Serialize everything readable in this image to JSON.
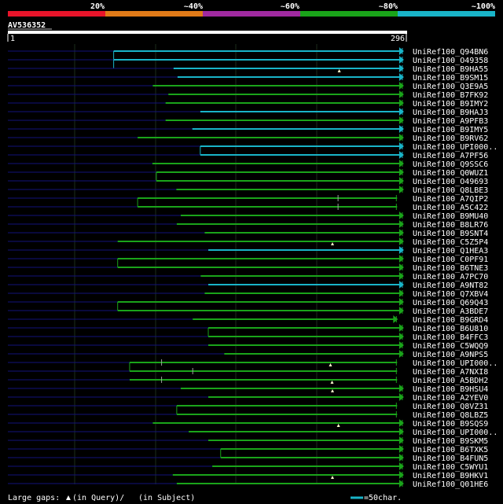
{
  "identity_scale": {
    "labels": [
      "20%",
      "~40%",
      "~60%",
      "~80%",
      "~100%"
    ],
    "colors": [
      "#e8142a",
      "#e07a18",
      "#a02aa0",
      "#1aa41a",
      "#19b4c8"
    ]
  },
  "query": {
    "name": "AV536352",
    "start": "1",
    "end": "296"
  },
  "hits": [
    {
      "name": "UniRef100_Q94BN6",
      "color": "#19b4c8",
      "start": 0.265,
      "end": 0.99,
      "seg": 0.265,
      "triangle": true
    },
    {
      "name": "UniRef100_O49358",
      "color": "#19b4c8",
      "start": 0.265,
      "end": 0.99,
      "seg": 0.265,
      "triangle": true
    },
    {
      "name": "UniRef100_B9HA55",
      "color": "#19b4c8",
      "start": 0.415,
      "end": 0.99,
      "marker": 0.83,
      "triangle": true
    },
    {
      "name": "UniRef100_B9SM15",
      "color": "#19b4c8",
      "start": 0.425,
      "end": 0.99,
      "triangle": true
    },
    {
      "name": "UniRef100_Q3E9A5",
      "color": "#1aa41a",
      "start": 0.363,
      "end": 0.99,
      "triangle": true
    },
    {
      "name": "UniRef100_B7FK92",
      "color": "#1aa41a",
      "start": 0.402,
      "end": 0.99,
      "triangle": true
    },
    {
      "name": "UniRef100_B9IMY2",
      "color": "#1aa41a",
      "start": 0.395,
      "end": 0.99,
      "triangle": true
    },
    {
      "name": "UniRef100_B9HAJ3",
      "color": "#19b4c8",
      "start": 0.482,
      "end": 0.99,
      "triangle": true
    },
    {
      "name": "UniRef100_A9PFB3",
      "color": "#1aa41a",
      "start": 0.395,
      "end": 0.99,
      "triangle": true
    },
    {
      "name": "UniRef100_B9IMY5",
      "color": "#19b4c8",
      "start": 0.462,
      "end": 0.99,
      "triangle": true
    },
    {
      "name": "UniRef100_B9RV62",
      "color": "#1aa41a",
      "start": 0.325,
      "end": 0.99,
      "triangle": true
    },
    {
      "name": "UniRef100_UPI000..",
      "color": "#19b4c8",
      "start": 0.482,
      "end": 0.99,
      "seg": 0.482,
      "triangle": true
    },
    {
      "name": "UniRef100_A7PF56",
      "color": "#19b4c8",
      "start": 0.482,
      "end": 0.99,
      "triangle": true
    },
    {
      "name": "UniRef100_Q9SSC6",
      "color": "#1aa41a",
      "start": 0.362,
      "end": 0.99,
      "triangle": true
    },
    {
      "name": "UniRef100_Q0WUZ1",
      "color": "#1aa41a",
      "start": 0.372,
      "end": 0.99,
      "seg": 0.372,
      "triangle": true
    },
    {
      "name": "UniRef100_O49693",
      "color": "#1aa41a",
      "start": 0.372,
      "end": 0.99,
      "triangle": true
    },
    {
      "name": "UniRef100_Q8LBE3",
      "color": "#1aa41a",
      "start": 0.422,
      "end": 0.99,
      "triangle": true
    },
    {
      "name": "UniRef100_A7QIP2",
      "color": "#1aa41a",
      "start": 0.325,
      "end": 0.975,
      "seg": 0.325,
      "tick": 0.827,
      "triangle": false
    },
    {
      "name": "UniRef100_A5C422",
      "color": "#1aa41a",
      "start": 0.325,
      "end": 0.975,
      "tick": 0.827,
      "triangle": false
    },
    {
      "name": "UniRef100_B9MU40",
      "color": "#1aa41a",
      "start": 0.433,
      "end": 0.99,
      "triangle": true
    },
    {
      "name": "UniRef100_B8LR76",
      "color": "#1aa41a",
      "start": 0.423,
      "end": 0.99,
      "triangle": true
    },
    {
      "name": "UniRef100_B9SNT4",
      "color": "#1aa41a",
      "start": 0.493,
      "end": 0.99,
      "triangle": true
    },
    {
      "name": "UniRef100_C5Z5P4",
      "color": "#1aa41a",
      "start": 0.275,
      "end": 0.99,
      "marker": 0.813,
      "triangle": true
    },
    {
      "name": "UniRef100_Q1HEA3",
      "color": "#19b4c8",
      "start": 0.502,
      "end": 0.99,
      "triangle": true
    },
    {
      "name": "UniRef100_C0PF91",
      "color": "#1aa41a",
      "start": 0.275,
      "end": 0.99,
      "seg": 0.275,
      "triangle": true
    },
    {
      "name": "UniRef100_B6TNE3",
      "color": "#1aa41a",
      "start": 0.275,
      "end": 0.99,
      "triangle": true
    },
    {
      "name": "UniRef100_A7PC70",
      "color": "#1aa41a",
      "start": 0.483,
      "end": 0.99,
      "triangle": true
    },
    {
      "name": "UniRef100_A9NT82",
      "color": "#19b4c8",
      "start": 0.502,
      "end": 0.99,
      "triangle": true
    },
    {
      "name": "UniRef100_Q7XBV4",
      "color": "#1aa41a",
      "start": 0.493,
      "end": 0.99,
      "triangle": true
    },
    {
      "name": "UniRef100_Q69Q43",
      "color": "#1aa41a",
      "start": 0.275,
      "end": 0.99,
      "seg": 0.275,
      "triangle": true
    },
    {
      "name": "UniRef100_A3BDE7",
      "color": "#1aa41a",
      "start": 0.275,
      "end": 0.99,
      "triangle": true
    },
    {
      "name": "UniRef100_B9GRD4",
      "color": "#1aa41a",
      "start": 0.463,
      "end": 0.975,
      "triangle": true
    },
    {
      "name": "UniRef100_B6U810",
      "color": "#1aa41a",
      "start": 0.502,
      "end": 0.99,
      "seg": 0.502,
      "triangle": true
    },
    {
      "name": "UniRef100_B4FFC3",
      "color": "#1aa41a",
      "start": 0.502,
      "end": 0.99,
      "triangle": true
    },
    {
      "name": "UniRef100_C5WQQ9",
      "color": "#1aa41a",
      "start": 0.502,
      "end": 0.99,
      "triangle": true
    },
    {
      "name": "UniRef100_A9NPS5",
      "color": "#1aa41a",
      "start": 0.542,
      "end": 0.99,
      "triangle": true
    },
    {
      "name": "UniRef100_UPI000..",
      "color": "#1aa41a",
      "start": 0.305,
      "end": 0.975,
      "seg": 0.305,
      "tick": 0.385,
      "marker": 0.808,
      "triangle": false
    },
    {
      "name": "UniRef100_A7NXI8",
      "color": "#1aa41a",
      "start": 0.305,
      "end": 0.975,
      "tick": 0.463,
      "triangle": false
    },
    {
      "name": "UniRef100_A5BDH2",
      "color": "#1aa41a",
      "start": 0.305,
      "end": 0.975,
      "tick": 0.385,
      "marker": 0.812,
      "triangle": false
    },
    {
      "name": "UniRef100_B9HSU4",
      "color": "#1aa41a",
      "start": 0.433,
      "end": 0.99,
      "marker": 0.813,
      "triangle": true
    },
    {
      "name": "UniRef100_A2YEV0",
      "color": "#1aa41a",
      "start": 0.502,
      "end": 0.99,
      "triangle": true
    },
    {
      "name": "UniRef100_Q8VZ31",
      "color": "#1aa41a",
      "start": 0.423,
      "end": 0.975,
      "seg": 0.423,
      "triangle": false
    },
    {
      "name": "UniRef100_Q8LBZ5",
      "color": "#1aa41a",
      "start": 0.423,
      "end": 0.975,
      "triangle": false
    },
    {
      "name": "UniRef100_B9SQS9",
      "color": "#1aa41a",
      "start": 0.363,
      "end": 0.99,
      "marker": 0.828,
      "triangle": true
    },
    {
      "name": "UniRef100_UPI000..",
      "color": "#1aa41a",
      "start": 0.453,
      "end": 0.99,
      "triangle": true
    },
    {
      "name": "UniRef100_B9SKM5",
      "color": "#1aa41a",
      "start": 0.502,
      "end": 0.99,
      "triangle": true
    },
    {
      "name": "UniRef100_B6TXK5",
      "color": "#1aa41a",
      "start": 0.533,
      "end": 0.99,
      "seg": 0.533,
      "triangle": true
    },
    {
      "name": "UniRef100_B4FUN5",
      "color": "#1aa41a",
      "start": 0.533,
      "end": 0.99,
      "triangle": true
    },
    {
      "name": "UniRef100_C5WYU1",
      "color": "#1aa41a",
      "start": 0.512,
      "end": 0.99,
      "triangle": true
    },
    {
      "name": "UniRef100_B9HKV1",
      "color": "#1aa41a",
      "start": 0.413,
      "end": 0.99,
      "marker": 0.813,
      "triangle": true
    },
    {
      "name": "UniRef100_Q01HE6",
      "color": "#1aa41a",
      "start": 0.423,
      "end": 0.99,
      "triangle": true
    }
  ],
  "footer": {
    "gap_label_1": "Large gaps:",
    "gap_label_2": "(in Query)/",
    "gap_label_3": "(in Subject)",
    "legend_label": "=50char."
  },
  "colors": {
    "background": "#000000",
    "gridline": "#1c2c1c",
    "unaligned": "#12127a",
    "query_bar": "#ffffff",
    "query_label_underline": "#c0c0c0",
    "gap_marker": "#ffffcc"
  }
}
